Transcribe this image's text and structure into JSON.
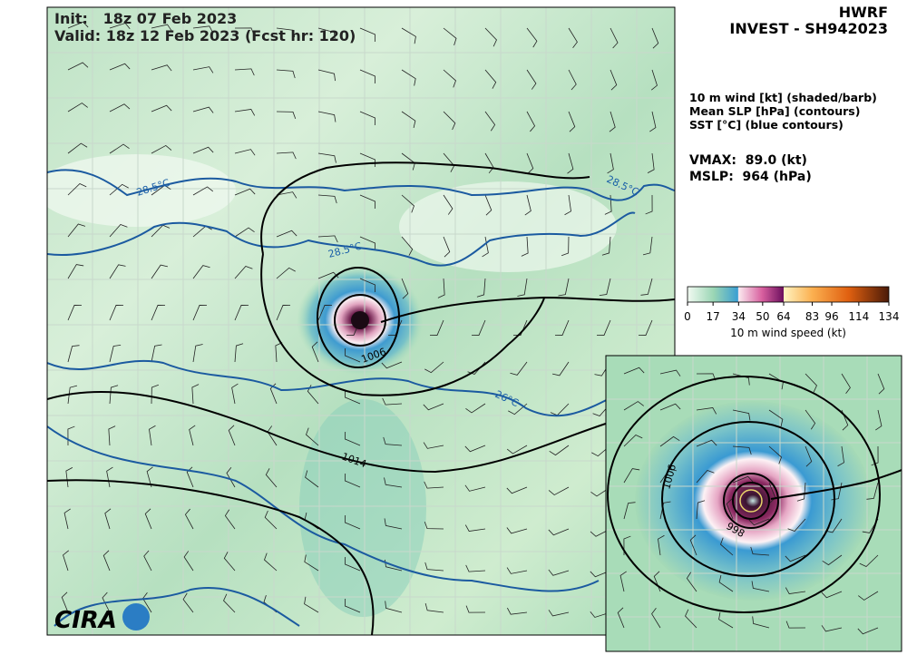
{
  "header": {
    "init": "Init:   18z 07 Feb 2023",
    "valid": "Valid: 18z 12 Feb 2023 (Fcst hr: 120)",
    "model": "HWRF",
    "storm": "INVEST - SH942023"
  },
  "fields": [
    "10 m wind [kt] (shaded/barb)",
    "Mean SLP [hPa] (contours)",
    "SST [°C] (blue contours)"
  ],
  "stats": [
    "VMAX:  89.0 (kt)",
    "MSLP:  964 (hPa)"
  ],
  "colorbar": {
    "ticks": [
      0,
      17,
      34,
      50,
      64,
      83,
      96,
      114,
      134
    ],
    "label": "10 m wind speed (kt)"
  },
  "map_labels": [
    "28.5°C",
    "28.5°C",
    "28.5°C",
    "26°C",
    "1006",
    "1014"
  ],
  "inset_labels": [
    "1006",
    "998"
  ],
  "logo": "CIRA"
}
